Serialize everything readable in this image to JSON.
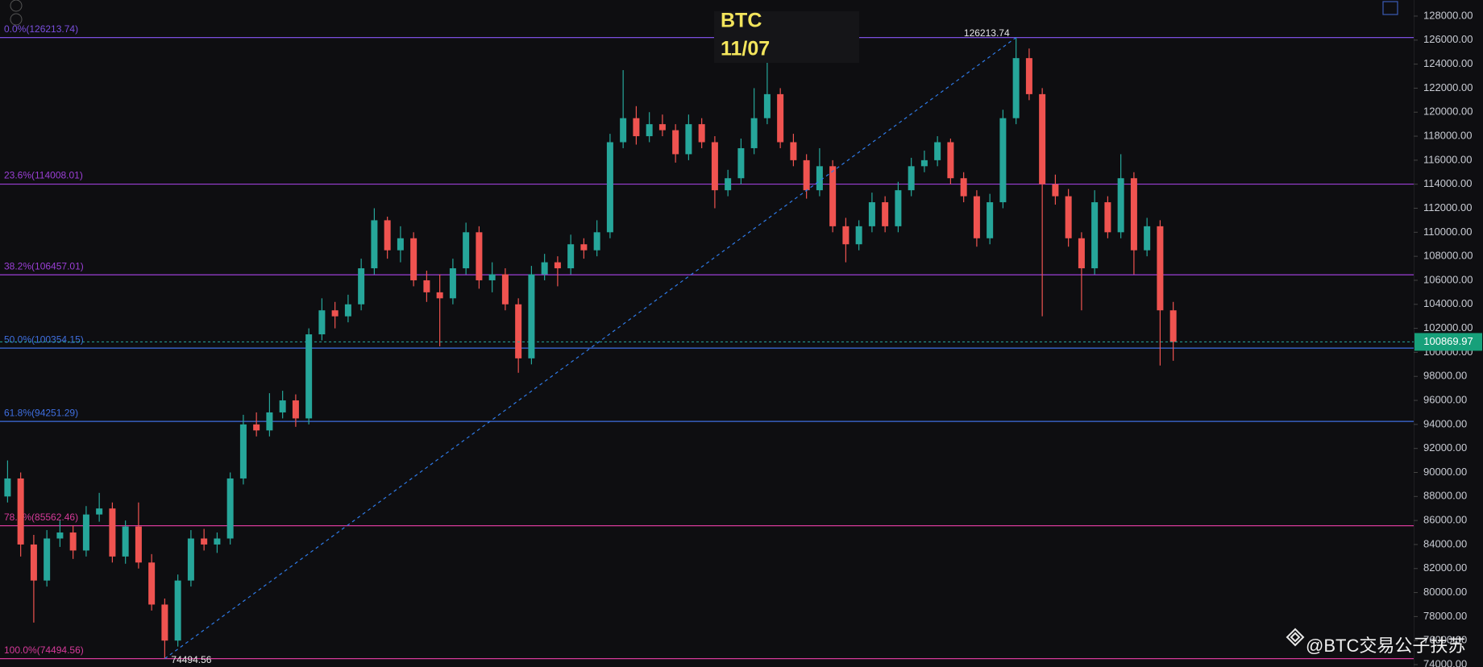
{
  "chart_data": {
    "type": "candlestick",
    "title": "BTC",
    "subtitle": "11/07",
    "watermark": "@BTC交易公子扶苏",
    "up_color": "#26a69a",
    "down_color": "#ef5350",
    "ylim": [
      73800,
      129340
    ],
    "yticks": [
      {
        "value": 74000,
        "label": "74000.00"
      },
      {
        "value": 76000,
        "label": "76000.00"
      },
      {
        "value": 78000,
        "label": "78000.00"
      },
      {
        "value": 80000,
        "label": "80000.00"
      },
      {
        "value": 82000,
        "label": "82000.00"
      },
      {
        "value": 84000,
        "label": "84000.00"
      },
      {
        "value": 86000,
        "label": "86000.00"
      },
      {
        "value": 88000,
        "label": "88000.00"
      },
      {
        "value": 90000,
        "label": "90000.00"
      },
      {
        "value": 92000,
        "label": "92000.00"
      },
      {
        "value": 94000,
        "label": "94000.00"
      },
      {
        "value": 96000,
        "label": "96000.00"
      },
      {
        "value": 98000,
        "label": "98000.00"
      },
      {
        "value": 100000,
        "label": "100000.00"
      },
      {
        "value": 102000,
        "label": "102000.00"
      },
      {
        "value": 104000,
        "label": "104000.00"
      },
      {
        "value": 106000,
        "label": "106000.00"
      },
      {
        "value": 108000,
        "label": "108000.00"
      },
      {
        "value": 110000,
        "label": "110000.00"
      },
      {
        "value": 112000,
        "label": "112000.00"
      },
      {
        "value": 114000,
        "label": "114000.00"
      },
      {
        "value": 116000,
        "label": "116000.00"
      },
      {
        "value": 118000,
        "label": "118000.00"
      },
      {
        "value": 120000,
        "label": "120000.00"
      },
      {
        "value": 122000,
        "label": "122000.00"
      },
      {
        "value": 124000,
        "label": "124000.00"
      },
      {
        "value": 126000,
        "label": "126000.00"
      },
      {
        "value": 128000,
        "label": "128000.00"
      }
    ],
    "open": [
      88000,
      89500,
      84000,
      81000,
      84500,
      85000,
      83500,
      86500,
      87000,
      83000,
      85500,
      82500,
      79000,
      76000,
      81000,
      84500,
      84000,
      84500,
      89500,
      94000,
      93500,
      95000,
      96000,
      94500,
      101500,
      103500,
      103000,
      104000,
      107000,
      111000,
      108500,
      109500,
      106000,
      105000,
      104500,
      107000,
      110000,
      106000,
      106500,
      104000,
      99500,
      106500,
      107500,
      107000,
      109000,
      108500,
      110000,
      117500,
      119500,
      118000,
      119000,
      118500,
      116500,
      119000,
      117500,
      113500,
      114500,
      117000,
      119500,
      121500,
      117500,
      116000,
      113500,
      115500,
      110500,
      109000,
      110500,
      112500,
      110500,
      113500,
      115500,
      116000,
      117500,
      114500,
      113000,
      109500,
      112500,
      119500,
      124500,
      121500,
      114000,
      113000,
      109500,
      107000,
      112500,
      110000,
      114500,
      108500,
      110500,
      103500
    ],
    "high": [
      91000,
      90000,
      84800,
      85200,
      86000,
      85600,
      87200,
      88300,
      87500,
      86000,
      87500,
      83200,
      79500,
      81500,
      85200,
      85300,
      85000,
      90000,
      94800,
      95000,
      96600,
      96800,
      96500,
      102000,
      104500,
      104200,
      104800,
      107800,
      112000,
      111300,
      110500,
      110000,
      106800,
      106500,
      107800,
      110800,
      110500,
      107500,
      107000,
      104500,
      107200,
      108200,
      108000,
      109800,
      109500,
      111000,
      118200,
      123500,
      120500,
      120000,
      119800,
      119000,
      119800,
      119500,
      118000,
      115200,
      117800,
      122000,
      124500,
      122000,
      118200,
      116500,
      117000,
      116000,
      111200,
      111000,
      113300,
      113000,
      114200,
      116200,
      116800,
      118000,
      117800,
      115000,
      113500,
      113200,
      120200,
      126213.74,
      125300,
      122000,
      114800,
      113600,
      110000,
      113500,
      113000,
      116500,
      115000,
      111200,
      111000,
      104200
    ],
    "low": [
      87500,
      83000,
      77500,
      80500,
      83800,
      82800,
      83000,
      85900,
      82500,
      82400,
      82000,
      78500,
      74494.56,
      75500,
      80500,
      83500,
      83300,
      84000,
      89000,
      93000,
      93000,
      94500,
      93800,
      94000,
      101000,
      102000,
      102500,
      103500,
      106500,
      107800,
      107500,
      105500,
      104200,
      100500,
      104000,
      106500,
      105300,
      105000,
      103500,
      98300,
      99000,
      106000,
      105500,
      106500,
      107800,
      108000,
      109500,
      117000,
      117300,
      117500,
      118000,
      115800,
      116000,
      117000,
      112000,
      113000,
      114000,
      116500,
      119000,
      117000,
      115500,
      112800,
      113000,
      110000,
      107500,
      108500,
      110000,
      110000,
      110000,
      113000,
      115000,
      115500,
      114000,
      112500,
      108800,
      109000,
      112000,
      119000,
      121000,
      103000,
      112300,
      108800,
      103500,
      106500,
      109500,
      109500,
      106500,
      108000,
      98900,
      99300
    ],
    "close": [
      89500,
      84000,
      81000,
      84500,
      85000,
      83500,
      86500,
      87000,
      83000,
      85500,
      82500,
      79000,
      76000,
      81000,
      84500,
      84000,
      84500,
      89500,
      94000,
      93500,
      95000,
      96000,
      94500,
      101500,
      103500,
      103000,
      104000,
      107000,
      111000,
      108500,
      109500,
      106000,
      105000,
      104500,
      107000,
      110000,
      106000,
      106500,
      104000,
      99500,
      106500,
      107500,
      107000,
      109000,
      108500,
      110000,
      117500,
      119500,
      118000,
      119000,
      118500,
      116500,
      119000,
      117500,
      113500,
      114500,
      117000,
      119500,
      121500,
      117500,
      116000,
      113500,
      115500,
      110500,
      109000,
      110500,
      112500,
      110500,
      113500,
      115500,
      116000,
      117500,
      114500,
      113000,
      109500,
      112500,
      119500,
      124500,
      121500,
      114000,
      113000,
      109500,
      107000,
      112500,
      110000,
      114500,
      108500,
      110500,
      103500,
      100869.97
    ],
    "fib_levels": [
      {
        "label": "0.0%(126213.74)",
        "value": 126213.74,
        "color": "#7b4fe0"
      },
      {
        "label": "23.6%(114008.01)",
        "value": 114008.01,
        "color": "#9b3fd6"
      },
      {
        "label": "38.2%(106457.01)",
        "value": 106457.01,
        "color": "#9b3fd6"
      },
      {
        "label": "50.0%(100354.15)",
        "value": 100354.15,
        "color": "#3f6fe0"
      },
      {
        "label": "61.8%(94251.29)",
        "value": 94251.29,
        "color": "#3f6fe0"
      },
      {
        "label": "78.6%(85562.46)",
        "value": 85562.46,
        "color": "#d63a9a"
      },
      {
        "label": "100.0%(74494.56)",
        "value": 74494.56,
        "color": "#d63a9a"
      }
    ],
    "trend_line": {
      "from": 74494.56,
      "to": 126213.74,
      "color": "#2f7be8"
    },
    "last_price": 100869.97
  }
}
